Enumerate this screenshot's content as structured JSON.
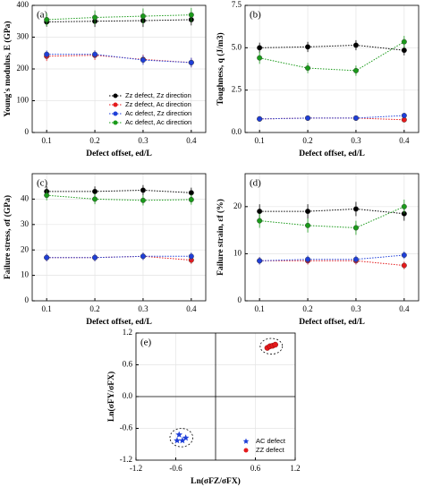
{
  "chart_data": [
    {
      "type": "line",
      "panel_label": "(a)",
      "x_label": "Defect offset, ed/L",
      "y_label": "Young's modulus, E (GPa)",
      "xlim": [
        0.07,
        0.43
      ],
      "xticks": [
        0.1,
        0.2,
        0.3,
        0.4
      ],
      "ylim": [
        0,
        400
      ],
      "yticks": [
        0,
        100,
        200,
        300,
        400
      ],
      "grid": true,
      "legend": "lower right",
      "series": [
        {
          "name": "Zz defect, Zz direction",
          "color": "#000000",
          "x": [
            0.1,
            0.2,
            0.3,
            0.4
          ],
          "values": [
            348,
            350,
            352,
            355
          ],
          "errors": [
            15,
            18,
            20,
            18
          ]
        },
        {
          "name": "Zz defect, Ac direction",
          "color": "#e41a1c",
          "x": [
            0.1,
            0.2,
            0.3,
            0.4
          ],
          "values": [
            240,
            243,
            230,
            220
          ],
          "errors": [
            15,
            15,
            15,
            15
          ]
        },
        {
          "name": "Ac defect, Zz direction",
          "color": "#1f3fd8",
          "x": [
            0.1,
            0.2,
            0.3,
            0.4
          ],
          "values": [
            246,
            246,
            228,
            220
          ],
          "errors": [
            12,
            12,
            15,
            15
          ]
        },
        {
          "name": "Ac defect, Ac direction",
          "color": "#1a9a1a",
          "x": [
            0.1,
            0.2,
            0.3,
            0.4
          ],
          "values": [
            355,
            362,
            366,
            370
          ],
          "errors": [
            20,
            22,
            24,
            22
          ]
        }
      ]
    },
    {
      "type": "line",
      "panel_label": "(b)",
      "x_label": "Defect offset, ed/L",
      "y_label": "Toughness, q (J/m3)",
      "xlim": [
        0.07,
        0.43
      ],
      "xticks": [
        0.1,
        0.2,
        0.3,
        0.4
      ],
      "ylim": [
        0,
        7.5
      ],
      "yticks": [
        {
          "value": 0,
          "label": "0.0"
        },
        2.5,
        {
          "value": 5,
          "label": "5.0"
        },
        7.5
      ],
      "grid": true,
      "series": [
        {
          "name": "Zz defect, Zz direction",
          "color": "#000000",
          "x": [
            0.1,
            0.2,
            0.3,
            0.4
          ],
          "values": [
            5.0,
            5.05,
            5.15,
            4.85
          ],
          "errors": [
            0.3,
            0.3,
            0.3,
            0.3
          ]
        },
        {
          "name": "Zz defect, Ac direction",
          "color": "#e41a1c",
          "x": [
            0.1,
            0.2,
            0.3,
            0.4
          ],
          "values": [
            0.8,
            0.85,
            0.85,
            0.75
          ],
          "errors": [
            0.1,
            0.1,
            0.1,
            0.1
          ]
        },
        {
          "name": "Ac defect, Zz direction",
          "color": "#1f3fd8",
          "x": [
            0.1,
            0.2,
            0.3,
            0.4
          ],
          "values": [
            0.8,
            0.85,
            0.85,
            1.0
          ],
          "errors": [
            0.1,
            0.1,
            0.1,
            0.1
          ]
        },
        {
          "name": "Ac defect, Ac direction",
          "color": "#1a9a1a",
          "x": [
            0.1,
            0.2,
            0.3,
            0.4
          ],
          "values": [
            4.4,
            3.8,
            3.65,
            5.35
          ],
          "errors": [
            0.35,
            0.3,
            0.3,
            0.35
          ]
        }
      ]
    },
    {
      "type": "line",
      "panel_label": "(c)",
      "x_label": "Defect offset, ed/L",
      "y_label": "Failure stress, σf (GPa)",
      "xlim": [
        0.07,
        0.43
      ],
      "xticks": [
        0.1,
        0.2,
        0.3,
        0.4
      ],
      "ylim": [
        0,
        50
      ],
      "yticks": [
        0,
        10,
        20,
        30,
        40
      ],
      "grid": true,
      "series": [
        {
          "name": "Zz defect, Zz direction",
          "color": "#000000",
          "x": [
            0.1,
            0.2,
            0.3,
            0.4
          ],
          "values": [
            43,
            43,
            43.5,
            42.5
          ],
          "errors": [
            2,
            2,
            2,
            2
          ]
        },
        {
          "name": "Zz defect, Ac direction",
          "color": "#e41a1c",
          "x": [
            0.1,
            0.2,
            0.3,
            0.4
          ],
          "values": [
            17,
            17,
            17.5,
            16
          ],
          "errors": [
            1.5,
            1.5,
            1.5,
            1.5
          ]
        },
        {
          "name": "Ac defect, Zz direction",
          "color": "#1f3fd8",
          "x": [
            0.1,
            0.2,
            0.3,
            0.4
          ],
          "values": [
            17,
            17,
            17.5,
            17.5
          ],
          "errors": [
            1.5,
            1.5,
            1.5,
            1.5
          ]
        },
        {
          "name": "Ac defect, Ac direction",
          "color": "#1a9a1a",
          "x": [
            0.1,
            0.2,
            0.3,
            0.4
          ],
          "values": [
            41.5,
            40,
            39.5,
            39.8
          ],
          "errors": [
            2,
            2,
            2,
            2
          ]
        }
      ]
    },
    {
      "type": "line",
      "panel_label": "(d)",
      "x_label": "Defect offset, ed/L",
      "y_label": "Failure strain, εf (%)",
      "xlim": [
        0.07,
        0.43
      ],
      "xticks": [
        0.1,
        0.2,
        0.3,
        0.4
      ],
      "ylim": [
        0,
        27
      ],
      "yticks": [
        0,
        10,
        20
      ],
      "grid": true,
      "series": [
        {
          "name": "Zz defect, Zz direction",
          "color": "#000000",
          "x": [
            0.1,
            0.2,
            0.3,
            0.4
          ],
          "values": [
            19,
            19,
            19.5,
            18.5
          ],
          "errors": [
            1.5,
            1.5,
            1.5,
            1.5
          ]
        },
        {
          "name": "Zz defect, Ac direction",
          "color": "#e41a1c",
          "x": [
            0.1,
            0.2,
            0.3,
            0.4
          ],
          "values": [
            8.5,
            8.5,
            8.5,
            7.5
          ],
          "errors": [
            0.8,
            0.8,
            0.8,
            0.8
          ]
        },
        {
          "name": "Ac defect, Zz direction",
          "color": "#1f3fd8",
          "x": [
            0.1,
            0.2,
            0.3,
            0.4
          ],
          "values": [
            8.5,
            8.8,
            8.8,
            9.7
          ],
          "errors": [
            0.8,
            0.8,
            0.8,
            0.8
          ]
        },
        {
          "name": "Ac defect, Ac direction",
          "color": "#1a9a1a",
          "x": [
            0.1,
            0.2,
            0.3,
            0.4
          ],
          "values": [
            17,
            16,
            15.5,
            20
          ],
          "errors": [
            1.5,
            1.5,
            1.5,
            1.5
          ]
        }
      ]
    },
    {
      "type": "scatter",
      "panel_label": "(e)",
      "x_label": "Ln(σFZ/σFX)",
      "y_label": "Ln(σFY/σFX)",
      "xlim": [
        -1.2,
        1.2
      ],
      "xticks": [
        -1.2,
        -0.6,
        0.6,
        1.2
      ],
      "ylim": [
        -1.2,
        1.2
      ],
      "yticks": [
        -1.2,
        -0.6,
        {
          "value": 0,
          "label": "0.0"
        },
        0.6,
        1.2
      ],
      "grid": true,
      "legend": "lower right",
      "series": [
        {
          "name": "AC defect",
          "color": "#1f3fd8",
          "marker": "star",
          "x": [
            -0.55,
            -0.58,
            -0.5,
            -0.45
          ],
          "values": [
            -0.72,
            -0.83,
            -0.83,
            -0.78
          ]
        },
        {
          "name": "ZZ defect",
          "color": "#e41a1c",
          "marker": "circle",
          "x": [
            0.78,
            0.82,
            0.86,
            0.9
          ],
          "values": [
            0.92,
            0.95,
            0.96,
            0.98
          ]
        }
      ]
    }
  ]
}
